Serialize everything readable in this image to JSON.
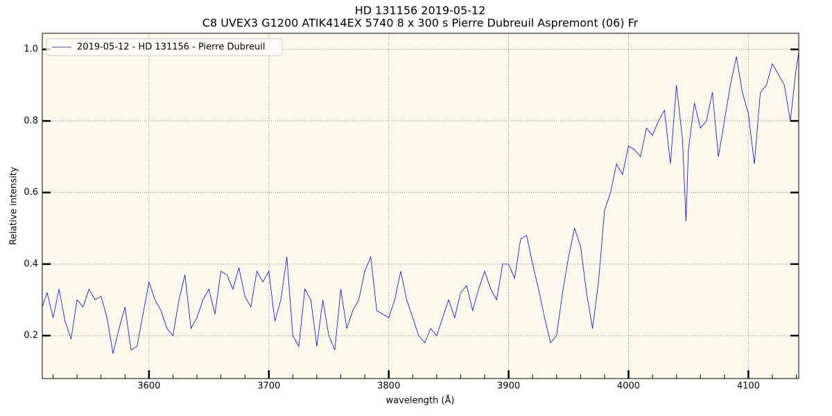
{
  "chart_data": {
    "type": "line",
    "title": "HD 131156 2019-05-12",
    "subtitle": "C8 UVEX3 G1200 ATIK414EX 5740 8 x 300 s Pierre Dubreuil Aspremont (06) Fr",
    "xlabel": "wavelength (Å)",
    "ylabel": "Relative intensity",
    "xlim": [
      3511,
      4142
    ],
    "ylim": [
      0.08,
      1.045
    ],
    "xticks": [
      3600,
      3700,
      3800,
      3900,
      4000,
      4100
    ],
    "xminorticks": [
      3520,
      3540,
      3560,
      3580,
      3620,
      3640,
      3660,
      3680,
      3720,
      3740,
      3760,
      3780,
      3820,
      3840,
      3860,
      3880,
      3920,
      3940,
      3960,
      3980,
      4020,
      4040,
      4060,
      4080,
      4120,
      4140
    ],
    "yticks": [
      0.2,
      0.4,
      0.6,
      0.8,
      {
        "value": 1,
        "label": "1.0"
      }
    ],
    "grid": true,
    "legend": "upper left",
    "background": "#fcf8ec",
    "x": [
      3511,
      3515,
      3520,
      3525,
      3530,
      3535,
      3540,
      3545,
      3550,
      3555,
      3560,
      3565,
      3570,
      3575,
      3580,
      3585,
      3590,
      3595,
      3600,
      3605,
      3610,
      3615,
      3620,
      3625,
      3630,
      3635,
      3640,
      3645,
      3650,
      3655,
      3660,
      3665,
      3670,
      3675,
      3680,
      3685,
      3690,
      3695,
      3700,
      3705,
      3710,
      3715,
      3720,
      3725,
      3730,
      3735,
      3740,
      3745,
      3750,
      3755,
      3760,
      3765,
      3770,
      3775,
      3780,
      3785,
      3790,
      3795,
      3800,
      3805,
      3810,
      3815,
      3820,
      3825,
      3830,
      3835,
      3840,
      3845,
      3850,
      3855,
      3860,
      3865,
      3870,
      3875,
      3880,
      3885,
      3890,
      3895,
      3900,
      3905,
      3910,
      3915,
      3920,
      3925,
      3930,
      3935,
      3940,
      3945,
      3950,
      3955,
      3960,
      3965,
      3970,
      3975,
      3980,
      3985,
      3990,
      3995,
      4000,
      4005,
      4010,
      4015,
      4020,
      4025,
      4030,
      4035,
      4040,
      4045,
      4048,
      4050,
      4055,
      4060,
      4065,
      4070,
      4075,
      4080,
      4085,
      4090,
      4095,
      4100,
      4105,
      4110,
      4115,
      4120,
      4125,
      4130,
      4135,
      4140,
      4142
    ],
    "series": [
      {
        "name": "2019-05-12 - HD 131156 - Pierre Dubreuil",
        "color": "#0000ff",
        "values": [
          0.28,
          0.32,
          0.25,
          0.33,
          0.24,
          0.19,
          0.3,
          0.28,
          0.33,
          0.3,
          0.31,
          0.25,
          0.15,
          0.22,
          0.28,
          0.16,
          0.17,
          0.26,
          0.35,
          0.3,
          0.27,
          0.22,
          0.2,
          0.3,
          0.37,
          0.22,
          0.25,
          0.3,
          0.33,
          0.26,
          0.38,
          0.37,
          0.33,
          0.39,
          0.31,
          0.28,
          0.38,
          0.35,
          0.38,
          0.24,
          0.3,
          0.42,
          0.2,
          0.17,
          0.33,
          0.3,
          0.17,
          0.3,
          0.2,
          0.16,
          0.33,
          0.22,
          0.27,
          0.3,
          0.38,
          0.42,
          0.27,
          0.26,
          0.25,
          0.3,
          0.38,
          0.3,
          0.25,
          0.2,
          0.18,
          0.22,
          0.2,
          0.25,
          0.3,
          0.25,
          0.32,
          0.34,
          0.27,
          0.33,
          0.38,
          0.33,
          0.3,
          0.4,
          0.4,
          0.36,
          0.47,
          0.48,
          0.4,
          0.33,
          0.25,
          0.18,
          0.2,
          0.32,
          0.42,
          0.5,
          0.45,
          0.32,
          0.22,
          0.35,
          0.55,
          0.6,
          0.68,
          0.65,
          0.73,
          0.72,
          0.7,
          0.78,
          0.76,
          0.8,
          0.83,
          0.68,
          0.9,
          0.75,
          0.52,
          0.72,
          0.85,
          0.78,
          0.8,
          0.88,
          0.7,
          0.8,
          0.9,
          0.98,
          0.88,
          0.82,
          0.68,
          0.88,
          0.9,
          0.96,
          0.93,
          0.9,
          0.8,
          0.95,
          0.99
        ]
      }
    ]
  }
}
